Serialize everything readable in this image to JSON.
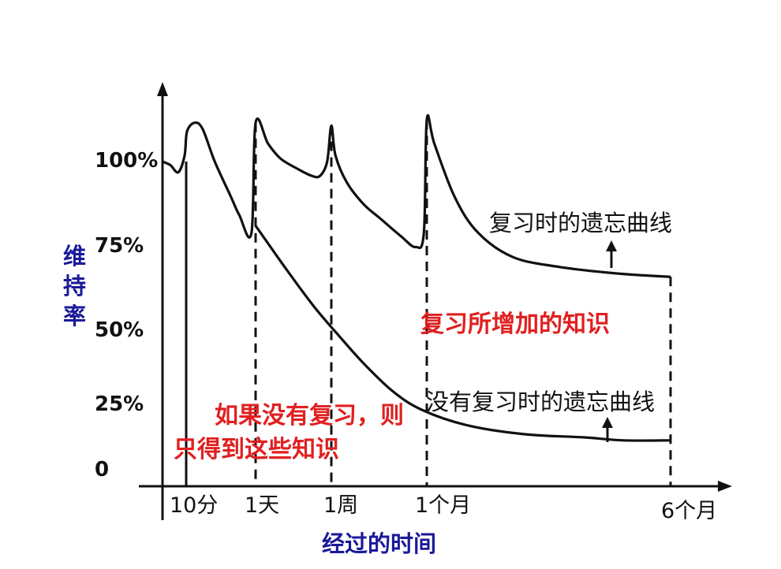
{
  "chart_data": {
    "type": "line",
    "ylabel": "维持率",
    "xlabel": "经过的时间",
    "y_ticks": [
      "100%",
      "75%",
      "50%",
      "25%",
      "0"
    ],
    "y_tick_values": [
      100,
      75,
      50,
      25,
      0
    ],
    "x_ticks": [
      "10分",
      "1天",
      "1周",
      "1个月",
      "6个月"
    ],
    "ylim": [
      0,
      125
    ],
    "grid": false,
    "series": [
      {
        "name": "复习时的遗忘曲线",
        "points": [
          {
            "x": 0,
            "y": 100
          },
          {
            "x": 0.1,
            "y": 99
          },
          {
            "x": 0.2,
            "y": 97
          },
          {
            "x": 0.28,
            "y": 102
          },
          {
            "x": 0.32,
            "y": 110
          },
          {
            "x": 0.5,
            "y": 113
          },
          {
            "x": 0.7,
            "y": 111
          },
          {
            "x": 1.0,
            "y": 100
          },
          {
            "x": 1.4,
            "y": 90
          },
          {
            "x": 1.6,
            "y": 85
          },
          {
            "x": 1.9,
            "y": 80
          },
          {
            "x": 2.0,
            "y": 113
          },
          {
            "x": 2.3,
            "y": 106
          },
          {
            "x": 2.6,
            "y": 101
          },
          {
            "x": 3.0,
            "y": 98
          },
          {
            "x": 3.35,
            "y": 96
          },
          {
            "x": 3.55,
            "y": 96
          },
          {
            "x": 3.72,
            "y": 100
          },
          {
            "x": 3.82,
            "y": 112
          },
          {
            "x": 3.92,
            "y": 102
          },
          {
            "x": 4.2,
            "y": 94
          },
          {
            "x": 4.6,
            "y": 88
          },
          {
            "x": 5.0,
            "y": 84
          },
          {
            "x": 5.5,
            "y": 79
          },
          {
            "x": 5.85,
            "y": 76
          },
          {
            "x": 6.05,
            "y": 80
          },
          {
            "x": 6.12,
            "y": 114
          },
          {
            "x": 6.25,
            "y": 106
          },
          {
            "x": 6.6,
            "y": 90
          },
          {
            "x": 7.0,
            "y": 80
          },
          {
            "x": 7.6,
            "y": 73
          },
          {
            "x": 8.4,
            "y": 70
          },
          {
            "x": 9.4,
            "y": 68
          },
          {
            "x": 10.3,
            "y": 67
          }
        ]
      },
      {
        "name": "没有复习时的遗忘曲线",
        "points": [
          {
            "x": 2.0,
            "y": 82
          },
          {
            "x": 2.7,
            "y": 70
          },
          {
            "x": 3.4,
            "y": 58
          },
          {
            "x": 4.0,
            "y": 49
          },
          {
            "x": 4.6,
            "y": 40
          },
          {
            "x": 5.3,
            "y": 31
          },
          {
            "x": 6.0,
            "y": 25
          },
          {
            "x": 6.8,
            "y": 20
          },
          {
            "x": 7.8,
            "y": 17
          },
          {
            "x": 8.8,
            "y": 16
          },
          {
            "x": 9.5,
            "y": 15
          },
          {
            "x": 10.3,
            "y": 15
          }
        ]
      }
    ],
    "markers": [
      {
        "label": "10分",
        "x": 0.3,
        "y_top": 100,
        "style": "solid"
      },
      {
        "label": "1天",
        "x": 2.0,
        "y_top": 113,
        "style": "dashed"
      },
      {
        "label": "1周",
        "x": 3.82,
        "y_top": 112,
        "style": "dashed"
      },
      {
        "label": "1个月",
        "x": 6.12,
        "y_top": 114,
        "style": "dashed"
      },
      {
        "label": "6个月",
        "x": 10.3,
        "y_top": 67,
        "style": "dashed"
      }
    ],
    "annotations": {
      "review_curve": "复习时的遗忘曲线",
      "added_knowledge": "复习所增加的知识",
      "no_review_curve": "没有复习时的遗忘曲线",
      "no_review_result_line1": "如果没有复习，则",
      "no_review_result_line2": "只得到这些知识"
    },
    "colors": {
      "curve": "#111111",
      "axis_title": "#1a1a9a",
      "highlight_text": "#e02020"
    }
  }
}
